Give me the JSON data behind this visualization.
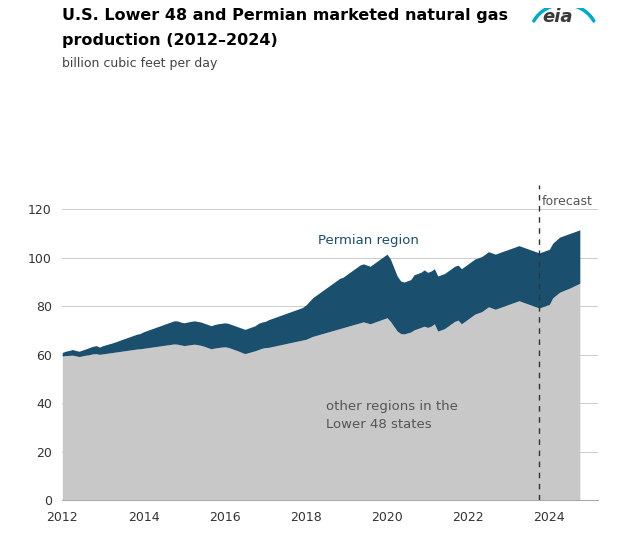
{
  "title_line1": "U.S. Lower 48 and Permian marketed natural gas",
  "title_line2": "production (2012–2024)",
  "ylabel": "billion cubic feet per day",
  "forecast_label": "forecast",
  "permian_label": "Permian region",
  "other_label": "other regions in the\nLower 48 states",
  "ylim": [
    0,
    130
  ],
  "yticks": [
    0,
    20,
    40,
    60,
    80,
    100,
    120
  ],
  "xticks": [
    2012,
    2014,
    2016,
    2018,
    2020,
    2022,
    2024
  ],
  "forecast_x": 2023.75,
  "color_other": "#c8c8c8",
  "color_permian": "#1a4f6e",
  "data": {
    "dates": [
      2012.0,
      2012.083,
      2012.167,
      2012.25,
      2012.333,
      2012.417,
      2012.5,
      2012.583,
      2012.667,
      2012.75,
      2012.833,
      2012.917,
      2013.0,
      2013.083,
      2013.167,
      2013.25,
      2013.333,
      2013.417,
      2013.5,
      2013.583,
      2013.667,
      2013.75,
      2013.833,
      2013.917,
      2014.0,
      2014.083,
      2014.167,
      2014.25,
      2014.333,
      2014.417,
      2014.5,
      2014.583,
      2014.667,
      2014.75,
      2014.833,
      2014.917,
      2015.0,
      2015.083,
      2015.167,
      2015.25,
      2015.333,
      2015.417,
      2015.5,
      2015.583,
      2015.667,
      2015.75,
      2015.833,
      2015.917,
      2016.0,
      2016.083,
      2016.167,
      2016.25,
      2016.333,
      2016.417,
      2016.5,
      2016.583,
      2016.667,
      2016.75,
      2016.833,
      2016.917,
      2017.0,
      2017.083,
      2017.167,
      2017.25,
      2017.333,
      2017.417,
      2017.5,
      2017.583,
      2017.667,
      2017.75,
      2017.833,
      2017.917,
      2018.0,
      2018.083,
      2018.167,
      2018.25,
      2018.333,
      2018.417,
      2018.5,
      2018.583,
      2018.667,
      2018.75,
      2018.833,
      2018.917,
      2019.0,
      2019.083,
      2019.167,
      2019.25,
      2019.333,
      2019.417,
      2019.5,
      2019.583,
      2019.667,
      2019.75,
      2019.833,
      2019.917,
      2020.0,
      2020.083,
      2020.167,
      2020.25,
      2020.333,
      2020.417,
      2020.5,
      2020.583,
      2020.667,
      2020.75,
      2020.833,
      2020.917,
      2021.0,
      2021.083,
      2021.167,
      2021.25,
      2021.333,
      2021.417,
      2021.5,
      2021.583,
      2021.667,
      2021.75,
      2021.833,
      2021.917,
      2022.0,
      2022.083,
      2022.167,
      2022.25,
      2022.333,
      2022.417,
      2022.5,
      2022.583,
      2022.667,
      2022.75,
      2022.833,
      2022.917,
      2023.0,
      2023.083,
      2023.167,
      2023.25,
      2023.333,
      2023.417,
      2023.5,
      2023.583,
      2023.667,
      2023.75,
      2023.833,
      2023.917,
      2024.0,
      2024.083,
      2024.25,
      2024.5,
      2024.75
    ],
    "total": [
      61.0,
      61.5,
      61.8,
      62.2,
      61.8,
      61.5,
      62.0,
      62.5,
      63.0,
      63.5,
      63.8,
      63.2,
      63.8,
      64.2,
      64.6,
      65.0,
      65.5,
      66.0,
      66.5,
      67.0,
      67.5,
      68.0,
      68.5,
      68.8,
      69.5,
      70.0,
      70.5,
      71.0,
      71.5,
      72.0,
      72.5,
      73.0,
      73.5,
      74.0,
      74.0,
      73.5,
      73.2,
      73.5,
      73.8,
      74.0,
      73.8,
      73.5,
      73.0,
      72.5,
      72.0,
      72.5,
      72.8,
      73.0,
      73.2,
      73.0,
      72.5,
      72.0,
      71.5,
      71.0,
      70.5,
      71.0,
      71.5,
      72.0,
      73.0,
      73.5,
      73.8,
      74.5,
      75.0,
      75.5,
      76.0,
      76.5,
      77.0,
      77.5,
      78.0,
      78.5,
      79.0,
      79.5,
      80.5,
      82.0,
      83.5,
      84.5,
      85.5,
      86.5,
      87.5,
      88.5,
      89.5,
      90.5,
      91.5,
      92.0,
      93.0,
      94.0,
      95.0,
      96.0,
      97.0,
      97.5,
      97.0,
      96.5,
      97.5,
      98.5,
      99.5,
      100.5,
      101.5,
      99.5,
      96.0,
      92.5,
      90.5,
      90.0,
      90.5,
      91.0,
      93.0,
      93.5,
      94.0,
      95.0,
      94.0,
      94.5,
      95.5,
      92.5,
      93.0,
      93.5,
      94.5,
      95.5,
      96.5,
      97.0,
      95.5,
      96.5,
      97.5,
      98.5,
      99.5,
      100.0,
      100.5,
      101.5,
      102.5,
      102.0,
      101.5,
      102.0,
      102.5,
      103.0,
      103.5,
      104.0,
      104.5,
      105.0,
      104.5,
      104.0,
      103.5,
      103.0,
      102.5,
      102.0,
      102.5,
      103.0,
      103.5,
      106.0,
      108.5,
      110.0,
      111.5
    ],
    "other": [
      59.5,
      59.7,
      59.8,
      59.9,
      59.6,
      59.3,
      59.6,
      59.9,
      60.1,
      60.4,
      60.5,
      60.2,
      60.4,
      60.6,
      60.8,
      61.0,
      61.2,
      61.4,
      61.6,
      61.8,
      62.0,
      62.2,
      62.4,
      62.5,
      62.7,
      62.9,
      63.1,
      63.3,
      63.5,
      63.7,
      63.9,
      64.1,
      64.3,
      64.5,
      64.4,
      64.1,
      63.8,
      64.0,
      64.2,
      64.4,
      64.2,
      63.9,
      63.5,
      63.0,
      62.5,
      62.8,
      63.0,
      63.2,
      63.3,
      63.1,
      62.6,
      62.1,
      61.6,
      61.0,
      60.5,
      60.9,
      61.3,
      61.7,
      62.2,
      62.7,
      63.0,
      63.1,
      63.4,
      63.7,
      64.0,
      64.3,
      64.6,
      64.9,
      65.2,
      65.5,
      65.8,
      66.1,
      66.4,
      67.0,
      67.6,
      68.0,
      68.4,
      68.8,
      69.2,
      69.6,
      70.0,
      70.4,
      70.8,
      71.2,
      71.6,
      72.0,
      72.4,
      72.8,
      73.2,
      73.6,
      73.2,
      72.8,
      73.3,
      73.8,
      74.3,
      74.8,
      75.3,
      73.8,
      71.8,
      69.8,
      68.8,
      68.6,
      69.0,
      69.4,
      70.3,
      70.8,
      71.3,
      71.8,
      71.3,
      71.8,
      72.8,
      69.8,
      70.3,
      70.8,
      71.8,
      72.8,
      73.8,
      74.3,
      72.8,
      73.8,
      74.8,
      75.8,
      76.8,
      77.3,
      77.8,
      78.8,
      79.8,
      79.3,
      78.8,
      79.3,
      79.8,
      80.3,
      80.8,
      81.3,
      81.8,
      82.3,
      81.8,
      81.3,
      80.8,
      80.3,
      79.8,
      79.3,
      79.8,
      80.3,
      80.8,
      83.5,
      85.8,
      87.5,
      89.5
    ]
  }
}
